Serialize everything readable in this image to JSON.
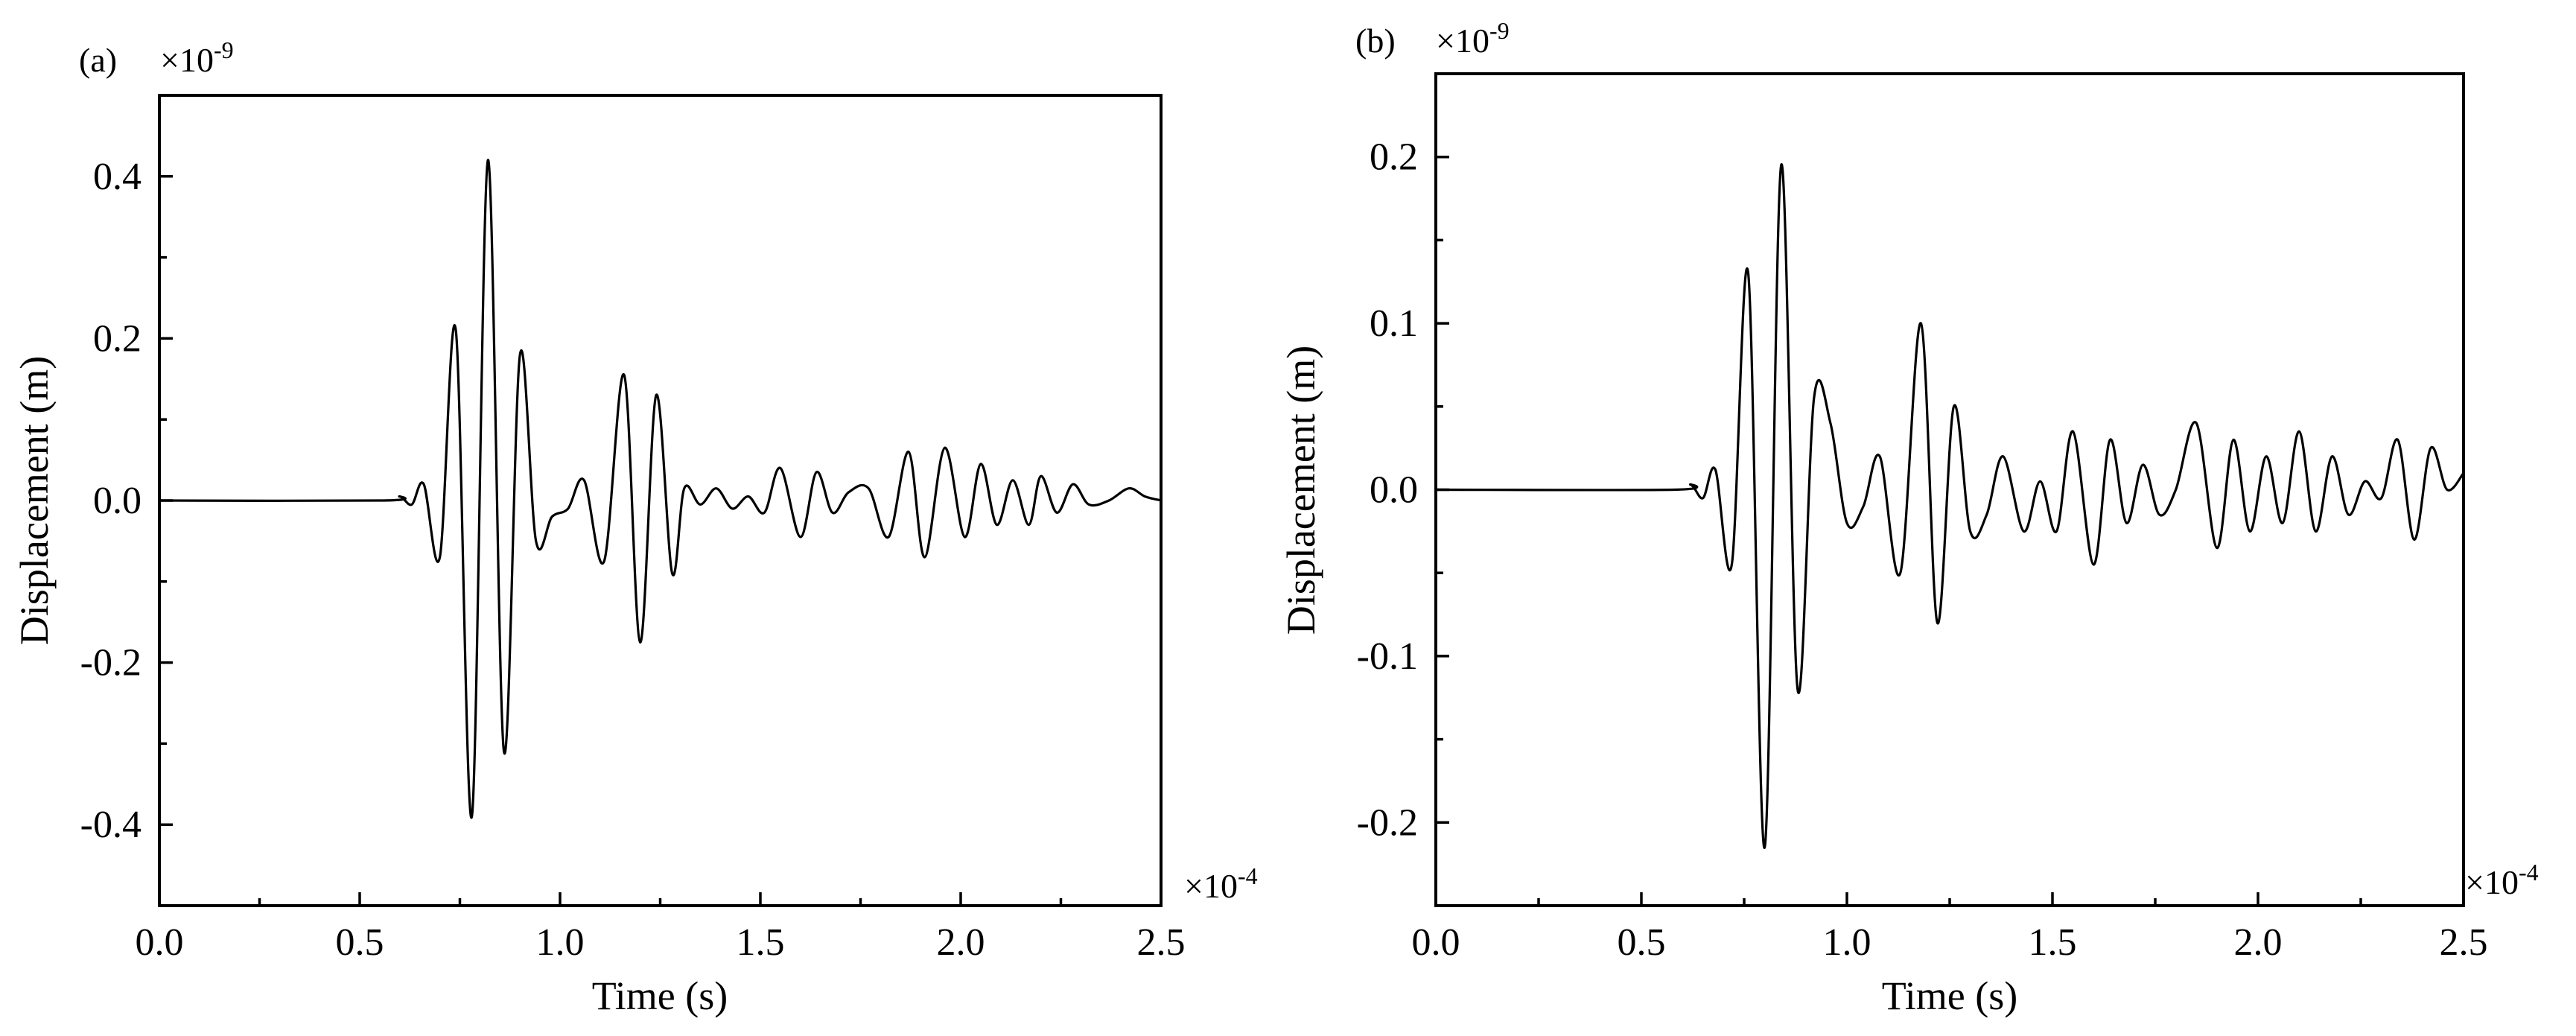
{
  "chart_data": [
    {
      "type": "line",
      "panel_label": "(a)",
      "xlabel": "Time (s)",
      "ylabel": "Displacement (m)",
      "x_multiplier": {
        "base": "×10",
        "exp": "-4"
      },
      "y_multiplier": {
        "base": "×10",
        "exp": "-9"
      },
      "xlim": [
        0,
        2.5
      ],
      "ylim": [
        -0.5,
        0.5
      ],
      "xticks": [
        0.0,
        0.5,
        1.0,
        1.5,
        2.0,
        2.5
      ],
      "yticks": [
        -0.4,
        -0.2,
        0.0,
        0.2,
        0.4
      ],
      "xtick_labels": [
        "0.0",
        "0.5",
        "1.0",
        "1.5",
        "2.0",
        "2.5"
      ],
      "ytick_labels": [
        "-0.4",
        "-0.2",
        "0.0",
        "0.2",
        "0.4"
      ],
      "series": [
        {
          "x": [
            0,
            0.56,
            0.6,
            0.63,
            0.66,
            0.7,
            0.74,
            0.78,
            0.82,
            0.86,
            0.9,
            0.94,
            0.98,
            1.02,
            1.06,
            1.11,
            1.16,
            1.2,
            1.24,
            1.28,
            1.31,
            1.35,
            1.39,
            1.43,
            1.47,
            1.51,
            1.55,
            1.6,
            1.64,
            1.68,
            1.72,
            1.77,
            1.82,
            1.87,
            1.91,
            1.96,
            2.01,
            2.05,
            2.09,
            2.13,
            2.17,
            2.2,
            2.24,
            2.28,
            2.32,
            2.37,
            2.42,
            2.46,
            2.5
          ],
          "y": [
            0,
            0,
            0.005,
            -0.005,
            0.02,
            -0.07,
            0.21,
            -0.39,
            0.42,
            -0.31,
            0.18,
            -0.05,
            -0.02,
            -0.01,
            0.025,
            -0.075,
            0.155,
            -0.175,
            0.13,
            -0.09,
            0.015,
            -0.005,
            0.015,
            -0.01,
            0.005,
            -0.015,
            0.04,
            -0.045,
            0.035,
            -0.015,
            0.01,
            0.015,
            -0.045,
            0.06,
            -0.07,
            0.065,
            -0.045,
            0.045,
            -0.03,
            0.025,
            -0.03,
            0.03,
            -0.015,
            0.02,
            -0.005,
            0.0,
            0.015,
            0.005,
            0.0
          ]
        }
      ]
    },
    {
      "type": "line",
      "panel_label": "(b)",
      "xlabel": "Time (s)",
      "ylabel": "Displacement (m)",
      "x_multiplier": {
        "base": "×10",
        "exp": "-4"
      },
      "y_multiplier": {
        "base": "×10",
        "exp": "-9"
      },
      "xlim": [
        0,
        2.5
      ],
      "ylim": [
        -0.25,
        0.25
      ],
      "xticks": [
        0.0,
        0.5,
        1.0,
        1.5,
        2.0,
        2.5
      ],
      "yticks": [
        -0.2,
        -0.1,
        0.0,
        0.1,
        0.2
      ],
      "xtick_labels": [
        "0.0",
        "0.5",
        "1.0",
        "1.5",
        "2.0",
        "2.5"
      ],
      "ytick_labels": [
        "-0.2",
        "-0.1",
        "0.0",
        "0.1",
        "0.2"
      ],
      "series": [
        {
          "x": [
            0,
            0.58,
            0.62,
            0.65,
            0.68,
            0.72,
            0.76,
            0.8,
            0.84,
            0.88,
            0.92,
            0.96,
            1.0,
            1.04,
            1.08,
            1.13,
            1.18,
            1.22,
            1.26,
            1.3,
            1.34,
            1.38,
            1.43,
            1.47,
            1.51,
            1.55,
            1.6,
            1.64,
            1.68,
            1.72,
            1.76,
            1.8,
            1.85,
            1.9,
            1.94,
            1.98,
            2.02,
            2.06,
            2.1,
            2.14,
            2.18,
            2.22,
            2.26,
            2.3,
            2.34,
            2.38,
            2.42,
            2.46,
            2.5
          ],
          "y": [
            0,
            0,
            0.003,
            -0.005,
            0.012,
            -0.045,
            0.13,
            -0.215,
            0.195,
            -0.12,
            0.055,
            0.04,
            -0.02,
            -0.01,
            0.02,
            -0.05,
            0.1,
            -0.08,
            0.05,
            -0.025,
            -0.015,
            0.02,
            -0.025,
            0.005,
            -0.025,
            0.035,
            -0.045,
            0.03,
            -0.02,
            0.015,
            -0.015,
            0.0,
            0.04,
            -0.035,
            0.03,
            -0.025,
            0.02,
            -0.02,
            0.035,
            -0.025,
            0.02,
            -0.015,
            0.005,
            -0.005,
            0.03,
            -0.03,
            0.025,
            0.0,
            0.01
          ]
        }
      ]
    }
  ]
}
